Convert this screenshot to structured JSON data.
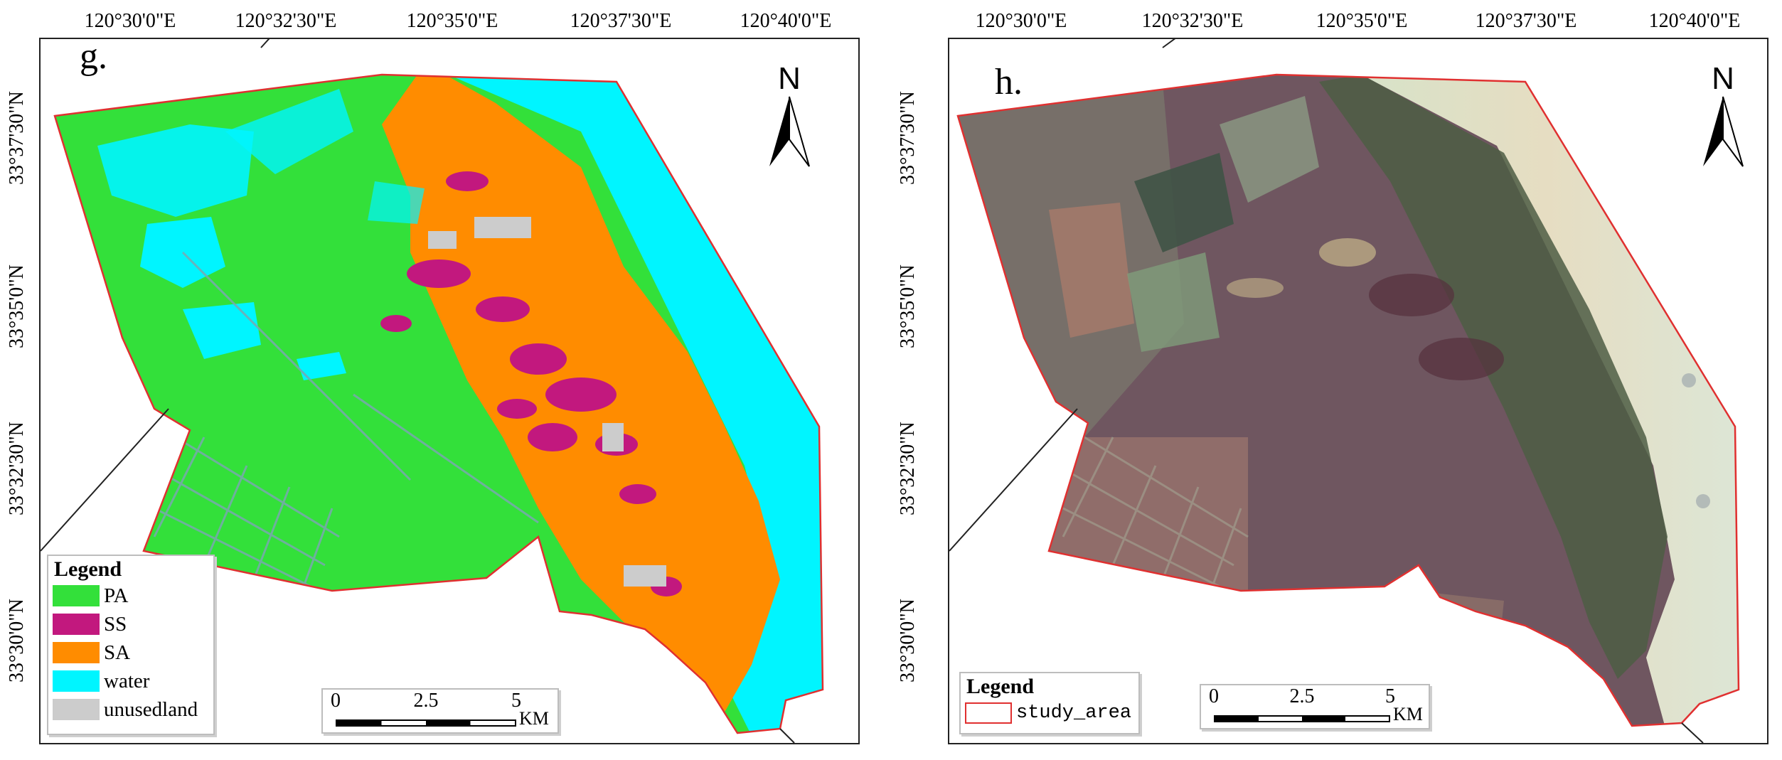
{
  "panels": [
    {
      "label": "g.",
      "lon_ticks": [
        "120°30'0\"E",
        "120°32'30\"E",
        "120°35'0\"E",
        "120°37'30\"E",
        "120°40'0\"E"
      ],
      "lat_ticks": [
        "33°37'30\"N",
        "33°35'0\"N",
        "33°32'30\"N",
        "33°30'0\"N"
      ],
      "north_label": "N",
      "legend": {
        "title": "Legend",
        "items": [
          {
            "label": "PA",
            "color": "#33e03a"
          },
          {
            "label": "SS",
            "color": "#c2187e"
          },
          {
            "label": "SA",
            "color": "#ff8c00"
          },
          {
            "label": "water",
            "color": "#00f5ff"
          },
          {
            "label": "unusedland",
            "color": "#cccccc"
          }
        ]
      },
      "scale": {
        "labels": [
          "0",
          "2.5",
          "5"
        ],
        "unit": "KM"
      }
    },
    {
      "label": "h.",
      "lon_ticks": [
        "120°30'0\"E",
        "120°32'30\"E",
        "120°35'0\"E",
        "120°37'30\"E",
        "120°40'0\"E"
      ],
      "lat_ticks": [
        "33°37'30\"N",
        "33°35'0\"N",
        "33°32'30\"N",
        "33°30'0\"N"
      ],
      "north_label": "N",
      "legend": {
        "title": "Legend",
        "items": [
          {
            "label": "study_area",
            "color": "#e03030"
          }
        ]
      },
      "scale": {
        "labels": [
          "0",
          "2.5",
          "5"
        ],
        "unit": "KM"
      }
    }
  ]
}
